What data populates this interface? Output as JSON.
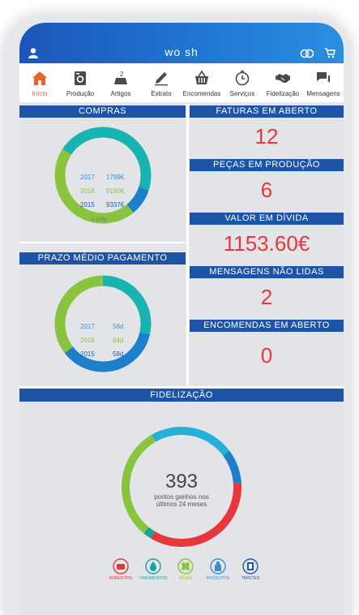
{
  "header": {
    "brand": "wo sh"
  },
  "nav": [
    {
      "label": "Início",
      "icon": "home-icon",
      "active": true
    },
    {
      "label": "Produção",
      "icon": "washing-machine-icon",
      "active": false
    },
    {
      "label": "Artigos",
      "icon": "clothes-scale-icon",
      "active": false
    },
    {
      "label": "Extrato",
      "icon": "pencil-icon",
      "active": false
    },
    {
      "label": "Encomendas",
      "icon": "basket-icon",
      "active": false
    },
    {
      "label": "Serviços",
      "icon": "timer-icon",
      "active": false
    },
    {
      "label": "Fidelização",
      "icon": "handshake-icon",
      "active": false
    },
    {
      "label": "Mensagens",
      "icon": "chat-icon",
      "active": false
    }
  ],
  "compras": {
    "title": "COMPRAS",
    "rows": [
      {
        "year": "2017",
        "value": "1799€",
        "color": "#3a8fd0"
      },
      {
        "year": "2016",
        "value": "9160€",
        "color": "#8ac43f"
      },
      {
        "year": "2015",
        "value": "9337€",
        "color": "#1c5ea8"
      }
    ],
    "more": "+ info"
  },
  "prazo": {
    "title": "PRAZO MÉDIO PAGAMENTO",
    "rows": [
      {
        "year": "2017",
        "value": "56d",
        "color": "#3a8fd0"
      },
      {
        "year": "2016",
        "value": "64d",
        "color": "#8ac43f"
      },
      {
        "year": "2015",
        "value": "58d",
        "color": "#1c5ea8"
      }
    ]
  },
  "stats": [
    {
      "title": "FATURAS EM ABERTO",
      "value": "12"
    },
    {
      "title": "PEÇAS EM PRODUÇÃO",
      "value": "6"
    },
    {
      "title": "VALOR EM DÍVIDA",
      "value": "1153.60€"
    },
    {
      "title": "MENSAGENS NÃO LIDAS",
      "value": "2"
    },
    {
      "title": "ENCOMENDAS EM ABERTO",
      "value": "0"
    }
  ],
  "fidelizacao": {
    "title": "FIDELIZAÇÃO",
    "points": "393",
    "caption_line1": "pontos ganhos nos",
    "caption_line2": "últimos 24 meses"
  },
  "categories": [
    {
      "label": "EDREDONS",
      "icon": "duvet-icon",
      "color": "#e8373c"
    },
    {
      "label": "TINGIMENTOS",
      "icon": "drop-icon",
      "color": "#19a39a"
    },
    {
      "label": "PELES",
      "icon": "fur-icon",
      "color": "#8ac43f"
    },
    {
      "label": "PRODUTOS",
      "icon": "bottle-icon",
      "color": "#3a8fd0"
    },
    {
      "label": "TAPETES",
      "icon": "rug-icon",
      "color": "#1c5ea8"
    }
  ],
  "colors": {
    "header_blue": "#1d54a5",
    "accent_red": "#e8373c",
    "teal": "#19b3b1",
    "green": "#8ac43f",
    "blue": "#1c7fc8",
    "cyan": "#25b0d8"
  }
}
